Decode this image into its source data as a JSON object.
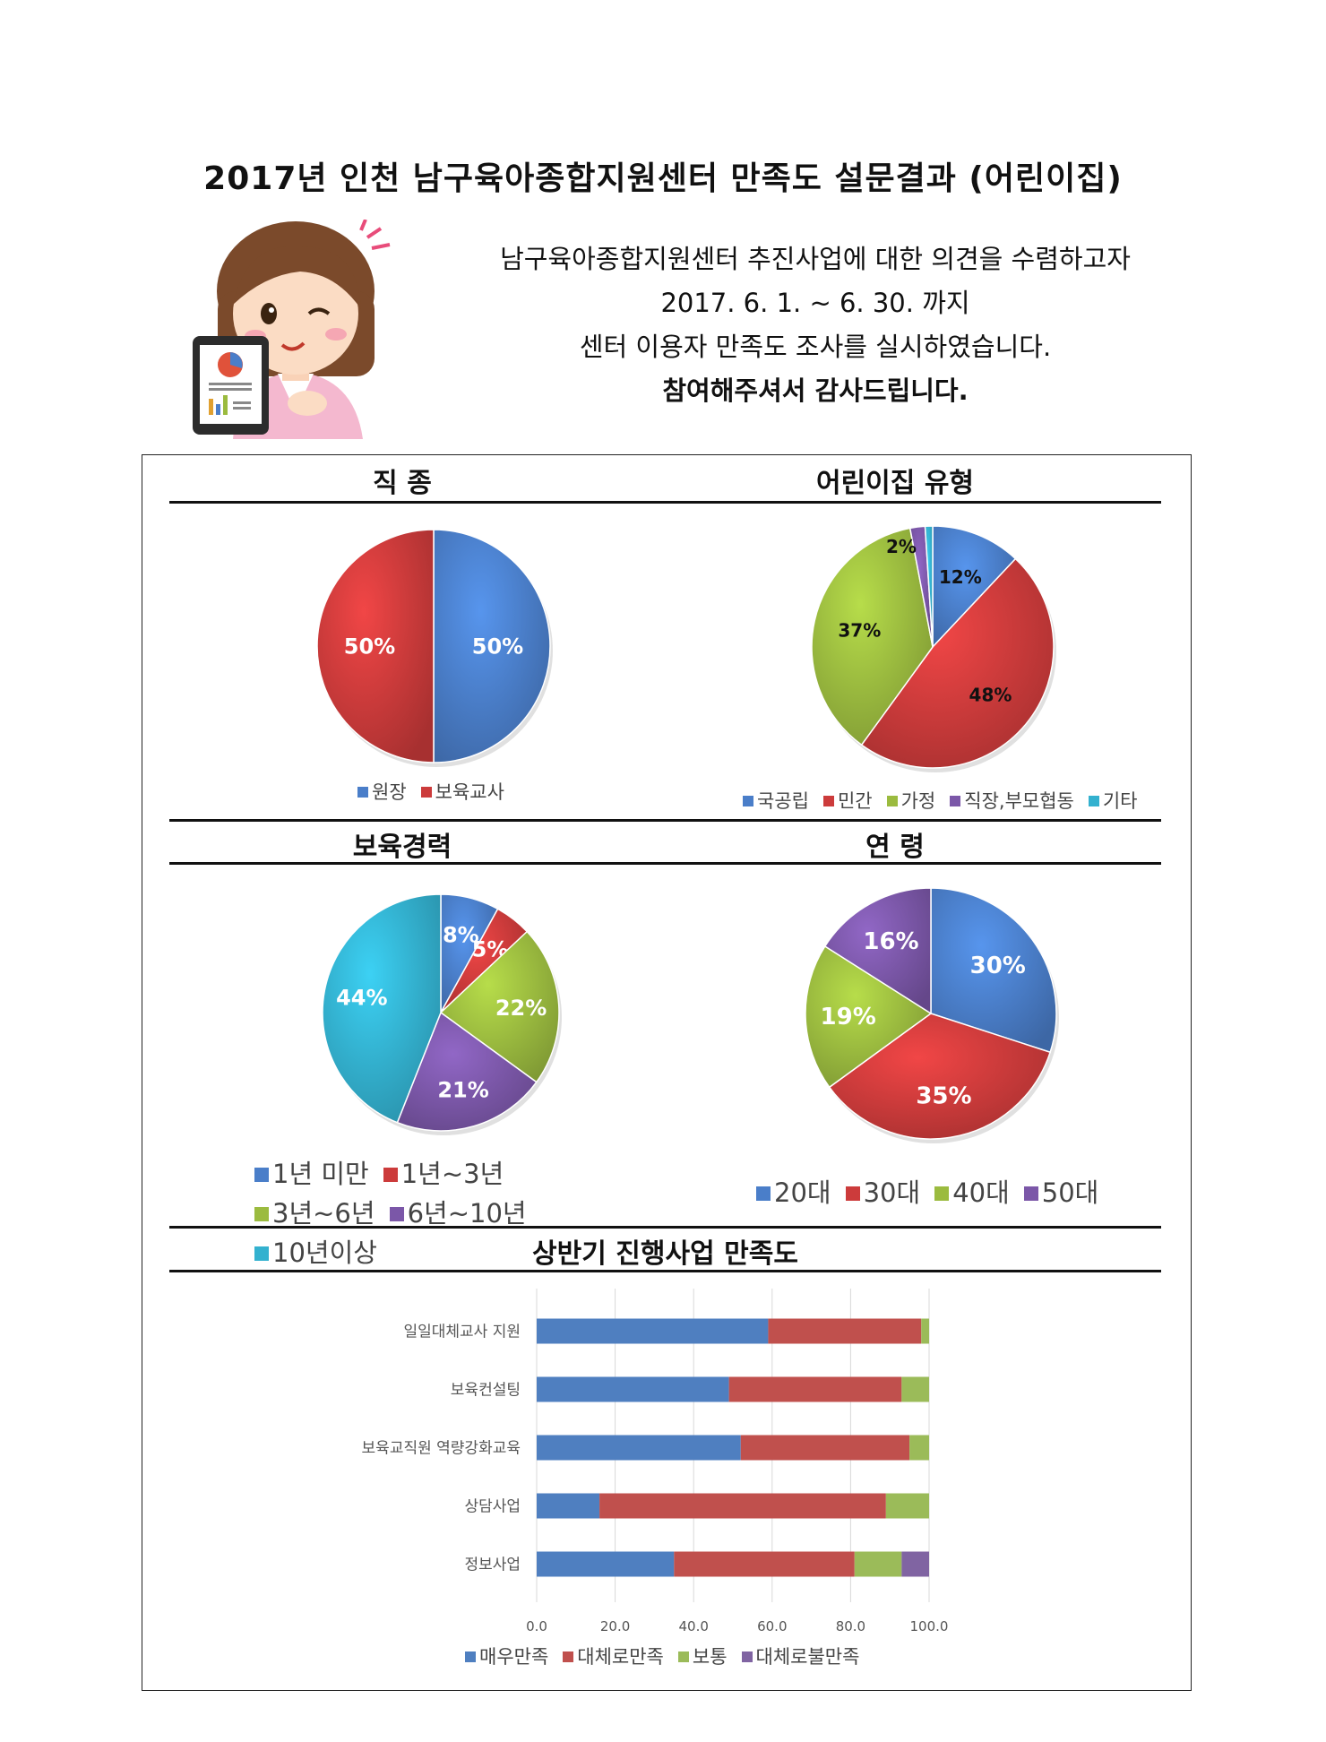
{
  "title": "2017년 인천 남구육아종합지원센터 만족도 설문결과 (어린이집)",
  "intro": {
    "line1": "남구육아종합지원센터 추진사업에 대한 의견을 수렴하고자",
    "line2": "2017. 6. 1. ~ 6. 30. 까지",
    "line3": "센터 이용자 만족도 조사를 실시하였습니다.",
    "line4": "참여해주셔서 감사드립니다."
  },
  "colors": {
    "blue": "#4a7ec9",
    "red": "#cc3b3b",
    "green": "#9bbb3f",
    "purple": "#7b57a8",
    "cyan": "#33b1cf"
  },
  "chart_data": [
    {
      "type": "pie",
      "title": "직 종",
      "labels": [
        "원장",
        "보육교사"
      ],
      "values": [
        50,
        50
      ],
      "value_labels": [
        "50%",
        "50%"
      ],
      "colors": [
        "#4a7ec9",
        "#cc3b3b"
      ],
      "legend_position": "bottom"
    },
    {
      "type": "pie",
      "title": "어린이집 유형",
      "labels": [
        "국공립",
        "민간",
        "가정",
        "직장,부모협동",
        "기타"
      ],
      "values": [
        12,
        48,
        37,
        2,
        1
      ],
      "value_labels": [
        "12%",
        "48%",
        "37%",
        "2%",
        ""
      ],
      "colors": [
        "#4a7ec9",
        "#cc3b3b",
        "#9bbb3f",
        "#7b57a8",
        "#33b1cf"
      ],
      "legend_position": "bottom"
    },
    {
      "type": "pie",
      "title": "보육경력",
      "labels": [
        "1년 미만",
        "1년~3년",
        "3년~6년",
        "6년~10년",
        "10년이상"
      ],
      "values": [
        8,
        5,
        22,
        21,
        44
      ],
      "value_labels": [
        "8%",
        "5%",
        "22%",
        "21%",
        "44%"
      ],
      "colors": [
        "#4a7ec9",
        "#cc3b3b",
        "#9bbb3f",
        "#7b57a8",
        "#33b1cf"
      ],
      "legend_position": "bottom"
    },
    {
      "type": "pie",
      "title": "연 령",
      "labels": [
        "20대",
        "30대",
        "40대",
        "50대"
      ],
      "values": [
        30,
        35,
        19,
        16
      ],
      "value_labels": [
        "30%",
        "35%",
        "19%",
        "16%"
      ],
      "colors": [
        "#4a7ec9",
        "#cc3b3b",
        "#9bbb3f",
        "#7b57a8"
      ],
      "legend_position": "bottom"
    },
    {
      "type": "bar",
      "orientation": "horizontal",
      "stacked": true,
      "title": "상반기 진행사업 만족도",
      "categories": [
        "일일대체교사 지원",
        "보육컨설팅",
        "보육교직원 역량강화교육",
        "상담사업",
        "정보사업"
      ],
      "series": [
        {
          "name": "매우만족",
          "color": "#4f7fc0",
          "values": [
            59,
            49,
            52,
            16,
            35
          ]
        },
        {
          "name": "대체로만족",
          "color": "#c0504d",
          "values": [
            39,
            44,
            43,
            73,
            46
          ]
        },
        {
          "name": "보통",
          "color": "#9bbb59",
          "values": [
            2,
            7,
            5,
            11,
            12
          ]
        },
        {
          "name": "대체로불만족",
          "color": "#8064a2",
          "values": [
            0,
            0,
            0,
            0,
            7
          ]
        }
      ],
      "xlim": [
        0,
        100
      ],
      "xticks": [
        "0.0",
        "20.0",
        "40.0",
        "60.0",
        "80.0",
        "100.0"
      ],
      "grid": true,
      "legend_position": "bottom"
    }
  ]
}
